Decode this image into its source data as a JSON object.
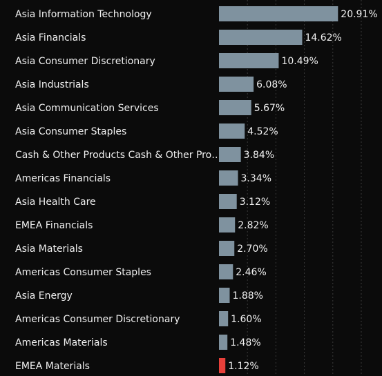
{
  "chart_data": {
    "type": "bar",
    "orientation": "horizontal",
    "categories": [
      "Asia Information Technology",
      "Asia Financials",
      "Asia Consumer Discretionary",
      "Asia Industrials",
      "Asia Communication Services",
      "Asia Consumer Staples",
      "Cash & Other Products Cash & Other Pro…",
      "Americas Financials",
      "Asia Health Care",
      "EMEA Financials",
      "Asia Materials",
      "Americas Consumer Staples",
      "Asia Energy",
      "Americas Consumer Discretionary",
      "Americas Materials",
      "EMEA Materials"
    ],
    "values": [
      20.91,
      14.62,
      10.49,
      6.08,
      5.67,
      4.52,
      3.84,
      3.34,
      3.12,
      2.82,
      2.7,
      2.46,
      1.88,
      1.6,
      1.48,
      1.12
    ],
    "value_labels": [
      "20.91%",
      "14.62%",
      "10.49%",
      "6.08%",
      "5.67%",
      "4.52%",
      "3.84%",
      "3.34%",
      "3.12%",
      "2.82%",
      "2.70%",
      "2.46%",
      "1.88%",
      "1.60%",
      "1.48%",
      "1.12%"
    ],
    "colors": [
      "#7f929f",
      "#7f929f",
      "#7f929f",
      "#7f929f",
      "#7f929f",
      "#7f929f",
      "#7f929f",
      "#7f929f",
      "#7f929f",
      "#7f929f",
      "#7f929f",
      "#7f929f",
      "#7f929f",
      "#7f929f",
      "#7f929f",
      "#e8403a"
    ],
    "xlim": [
      0,
      25
    ]
  }
}
